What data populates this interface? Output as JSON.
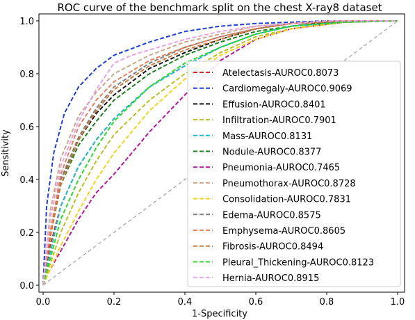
{
  "chart_data": {
    "type": "line",
    "title": "ROC curve of the benchmark split on the chest X-ray8 dataset",
    "xlabel": "1-Specificity",
    "ylabel": "Sensitivity",
    "xlim": [
      0,
      1
    ],
    "ylim": [
      0,
      1
    ],
    "xticks": [
      "0.0",
      "0.2",
      "0.4",
      "0.6",
      "0.8",
      "1.0"
    ],
    "yticks": [
      "0.0",
      "0.2",
      "0.4",
      "0.6",
      "0.8",
      "1.0"
    ],
    "grid": false,
    "legend_position": "lower right",
    "diagonal": {
      "x": [
        0,
        1
      ],
      "y": [
        0,
        1
      ],
      "color": "#a6a6a6",
      "style": "dashed"
    },
    "series": [
      {
        "name": "Atelectasis-AUROC0.8073",
        "color": "#d62728",
        "x": [
          0,
          0.02,
          0.05,
          0.1,
          0.15,
          0.2,
          0.3,
          0.4,
          0.5,
          0.6,
          0.7,
          0.8,
          1.0
        ],
        "y": [
          0,
          0.15,
          0.3,
          0.45,
          0.55,
          0.63,
          0.75,
          0.83,
          0.9,
          0.95,
          0.98,
          0.995,
          1.0
        ]
      },
      {
        "name": "Cardiomegaly-AUROC0.9069",
        "color": "#1f3fd6",
        "x": [
          0,
          0.01,
          0.03,
          0.06,
          0.1,
          0.15,
          0.2,
          0.3,
          0.4,
          0.5,
          0.6,
          0.8,
          1.0
        ],
        "y": [
          0,
          0.3,
          0.5,
          0.65,
          0.75,
          0.82,
          0.87,
          0.92,
          0.96,
          0.98,
          0.99,
          1.0,
          1.0
        ]
      },
      {
        "name": "Effusion-AUROC0.8401",
        "color": "#111111",
        "x": [
          0,
          0.02,
          0.05,
          0.1,
          0.15,
          0.2,
          0.3,
          0.4,
          0.5,
          0.6,
          0.7,
          0.85,
          1.0
        ],
        "y": [
          0,
          0.2,
          0.4,
          0.55,
          0.65,
          0.72,
          0.82,
          0.88,
          0.93,
          0.97,
          0.99,
          1.0,
          1.0
        ]
      },
      {
        "name": "Infiltration-AUROC0.7901",
        "color": "#bcbd22",
        "x": [
          0,
          0.02,
          0.05,
          0.1,
          0.15,
          0.2,
          0.3,
          0.4,
          0.5,
          0.6,
          0.7,
          0.85,
          1.0
        ],
        "y": [
          0,
          0.08,
          0.2,
          0.35,
          0.47,
          0.57,
          0.7,
          0.8,
          0.88,
          0.94,
          0.97,
          0.995,
          1.0
        ]
      },
      {
        "name": "Mass-AUROC0.8131",
        "color": "#17becf",
        "x": [
          0,
          0.02,
          0.05,
          0.1,
          0.15,
          0.2,
          0.3,
          0.4,
          0.5,
          0.6,
          0.7,
          0.85,
          1.0
        ],
        "y": [
          0,
          0.12,
          0.3,
          0.45,
          0.55,
          0.63,
          0.75,
          0.83,
          0.9,
          0.95,
          0.98,
          0.995,
          1.0
        ]
      },
      {
        "name": "Nodule-AUROC0.8377",
        "color": "#1a7f1a",
        "x": [
          0,
          0.02,
          0.05,
          0.1,
          0.15,
          0.2,
          0.3,
          0.4,
          0.5,
          0.6,
          0.7,
          0.85,
          1.0
        ],
        "y": [
          0,
          0.2,
          0.38,
          0.53,
          0.62,
          0.7,
          0.8,
          0.87,
          0.92,
          0.96,
          0.98,
          0.998,
          1.0
        ]
      },
      {
        "name": "Pneumonia-AUROC0.7465",
        "color": "#b5179e",
        "x": [
          0,
          0.02,
          0.05,
          0.1,
          0.15,
          0.2,
          0.25,
          0.3,
          0.4,
          0.5,
          0.6,
          0.7,
          0.85,
          1.0
        ],
        "y": [
          0,
          0.06,
          0.13,
          0.25,
          0.35,
          0.42,
          0.5,
          0.58,
          0.72,
          0.85,
          0.93,
          0.97,
          0.995,
          1.0
        ]
      },
      {
        "name": "Pneumothorax-AUROC0.8728",
        "color": "#c9a98a",
        "x": [
          0,
          0.02,
          0.05,
          0.1,
          0.15,
          0.2,
          0.3,
          0.4,
          0.5,
          0.6,
          0.7,
          0.85,
          1.0
        ],
        "y": [
          0,
          0.28,
          0.48,
          0.64,
          0.73,
          0.8,
          0.87,
          0.92,
          0.95,
          0.98,
          0.99,
          1.0,
          1.0
        ]
      },
      {
        "name": "Consolidation-AUROC0.7831",
        "color": "#f2d21b",
        "x": [
          0,
          0.02,
          0.05,
          0.1,
          0.15,
          0.2,
          0.3,
          0.4,
          0.5,
          0.6,
          0.7,
          0.85,
          1.0
        ],
        "y": [
          0,
          0.06,
          0.15,
          0.28,
          0.4,
          0.5,
          0.66,
          0.78,
          0.87,
          0.93,
          0.97,
          0.995,
          1.0
        ]
      },
      {
        "name": "Edema-AUROC0.8575",
        "color": "#7f7f7f",
        "x": [
          0,
          0.02,
          0.05,
          0.1,
          0.15,
          0.2,
          0.3,
          0.4,
          0.5,
          0.6,
          0.7,
          0.85,
          1.0
        ],
        "y": [
          0,
          0.18,
          0.4,
          0.56,
          0.67,
          0.75,
          0.84,
          0.9,
          0.94,
          0.97,
          0.99,
          1.0,
          1.0
        ]
      },
      {
        "name": "Emphysema-AUROC0.8605",
        "color": "#e9805a",
        "x": [
          0,
          0.02,
          0.05,
          0.1,
          0.15,
          0.2,
          0.3,
          0.4,
          0.5,
          0.6,
          0.7,
          0.85,
          1.0
        ],
        "y": [
          0,
          0.2,
          0.42,
          0.6,
          0.7,
          0.77,
          0.85,
          0.9,
          0.94,
          0.97,
          0.99,
          1.0,
          1.0
        ]
      },
      {
        "name": "Fibrosis-AUROC0.8494",
        "color": "#c87a3a",
        "x": [
          0,
          0.02,
          0.05,
          0.1,
          0.15,
          0.2,
          0.3,
          0.4,
          0.5,
          0.6,
          0.7,
          0.85,
          1.0
        ],
        "y": [
          0,
          0.18,
          0.38,
          0.55,
          0.66,
          0.74,
          0.83,
          0.89,
          0.93,
          0.97,
          0.99,
          1.0,
          1.0
        ]
      },
      {
        "name": "Pleural_Thickening-AUROC0.8123",
        "color": "#2bd92b",
        "x": [
          0,
          0.02,
          0.05,
          0.1,
          0.15,
          0.2,
          0.3,
          0.4,
          0.5,
          0.6,
          0.7,
          0.85,
          1.0
        ],
        "y": [
          0,
          0.1,
          0.25,
          0.4,
          0.52,
          0.62,
          0.75,
          0.84,
          0.9,
          0.95,
          0.98,
          0.995,
          1.0
        ]
      },
      {
        "name": "Hernia-AUROC0.8915",
        "color": "#e6a3e6",
        "x": [
          0,
          0.02,
          0.05,
          0.1,
          0.15,
          0.2,
          0.25,
          0.3,
          0.4,
          0.5,
          0.6,
          0.8,
          1.0
        ],
        "y": [
          0,
          0.25,
          0.45,
          0.62,
          0.74,
          0.84,
          0.87,
          0.89,
          0.93,
          0.96,
          0.98,
          1.0,
          1.0
        ]
      }
    ]
  }
}
